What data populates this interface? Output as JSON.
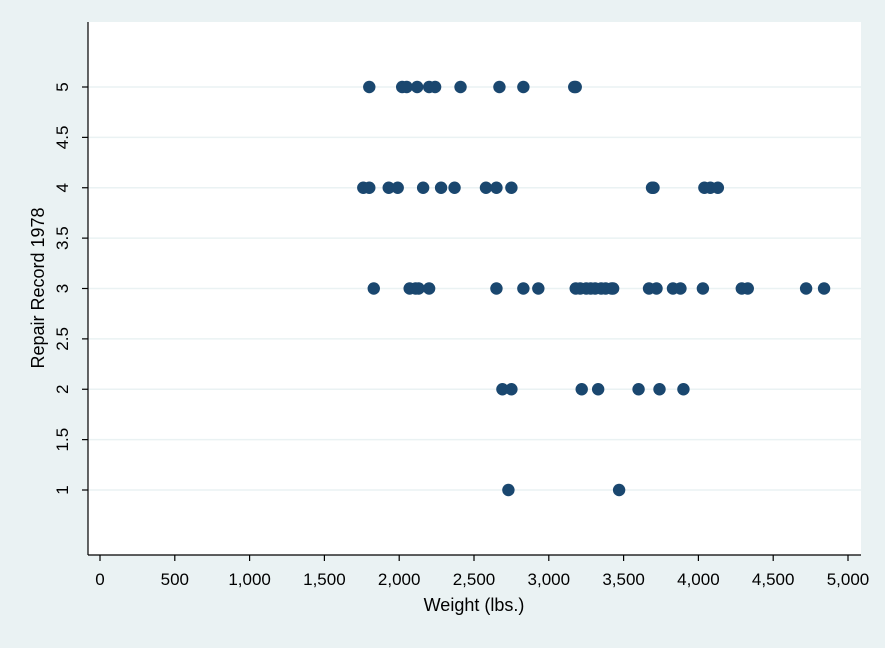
{
  "chart_data": {
    "type": "scatter",
    "title": "",
    "xlabel": "Weight (lbs.)",
    "ylabel": "Repair Record 1978",
    "xlim": [
      0,
      5000
    ],
    "ylim": [
      0.5,
      5.5
    ],
    "grid": true,
    "x_ticks": [
      0,
      500,
      1000,
      1500,
      2000,
      2500,
      3000,
      3500,
      4000,
      4500,
      5000
    ],
    "x_tick_labels": [
      "0",
      "500",
      "1,000",
      "1,500",
      "2,000",
      "2,500",
      "3,000",
      "3,500",
      "4,000",
      "4,500",
      "5,000"
    ],
    "y_ticks": [
      1,
      1.5,
      2,
      2.5,
      3,
      3.5,
      4,
      4.5,
      5
    ],
    "y_tick_labels": [
      "1",
      "1.5",
      "2",
      "2.5",
      "3",
      "3.5",
      "4",
      "4.5",
      "5"
    ],
    "colors": {
      "marker": "#1a476f",
      "outer_background": "#eaf2f3",
      "plot_background": "#ffffff",
      "gridline": "#eaf2f3",
      "axis": "#000000"
    },
    "series": [
      {
        "points": [
          {
            "x": 1800,
            "y": 5
          },
          {
            "x": 2020,
            "y": 5
          },
          {
            "x": 2050,
            "y": 5
          },
          {
            "x": 2120,
            "y": 5
          },
          {
            "x": 2200,
            "y": 5
          },
          {
            "x": 2240,
            "y": 5
          },
          {
            "x": 2410,
            "y": 5
          },
          {
            "x": 2670,
            "y": 5
          },
          {
            "x": 2830,
            "y": 5
          },
          {
            "x": 3170,
            "y": 5
          },
          {
            "x": 3180,
            "y": 5
          },
          {
            "x": 1760,
            "y": 4
          },
          {
            "x": 1800,
            "y": 4
          },
          {
            "x": 1930,
            "y": 4
          },
          {
            "x": 1990,
            "y": 4
          },
          {
            "x": 2160,
            "y": 4
          },
          {
            "x": 2280,
            "y": 4
          },
          {
            "x": 2370,
            "y": 4
          },
          {
            "x": 2580,
            "y": 4
          },
          {
            "x": 2650,
            "y": 4
          },
          {
            "x": 2750,
            "y": 4
          },
          {
            "x": 3690,
            "y": 4
          },
          {
            "x": 3700,
            "y": 4
          },
          {
            "x": 4040,
            "y": 4
          },
          {
            "x": 4080,
            "y": 4
          },
          {
            "x": 4130,
            "y": 4
          },
          {
            "x": 1830,
            "y": 3
          },
          {
            "x": 2070,
            "y": 3
          },
          {
            "x": 2110,
            "y": 3
          },
          {
            "x": 2130,
            "y": 3
          },
          {
            "x": 2200,
            "y": 3
          },
          {
            "x": 2650,
            "y": 3
          },
          {
            "x": 2830,
            "y": 3
          },
          {
            "x": 2930,
            "y": 3
          },
          {
            "x": 3180,
            "y": 3
          },
          {
            "x": 3210,
            "y": 3
          },
          {
            "x": 3250,
            "y": 3
          },
          {
            "x": 3280,
            "y": 3
          },
          {
            "x": 3310,
            "y": 3
          },
          {
            "x": 3350,
            "y": 3
          },
          {
            "x": 3380,
            "y": 3
          },
          {
            "x": 3420,
            "y": 3
          },
          {
            "x": 3430,
            "y": 3
          },
          {
            "x": 3670,
            "y": 3
          },
          {
            "x": 3720,
            "y": 3
          },
          {
            "x": 3830,
            "y": 3
          },
          {
            "x": 3880,
            "y": 3
          },
          {
            "x": 4030,
            "y": 3
          },
          {
            "x": 4290,
            "y": 3
          },
          {
            "x": 4330,
            "y": 3
          },
          {
            "x": 4720,
            "y": 3
          },
          {
            "x": 4840,
            "y": 3
          },
          {
            "x": 2690,
            "y": 2
          },
          {
            "x": 2750,
            "y": 2
          },
          {
            "x": 3220,
            "y": 2
          },
          {
            "x": 3330,
            "y": 2
          },
          {
            "x": 3600,
            "y": 2
          },
          {
            "x": 3740,
            "y": 2
          },
          {
            "x": 3900,
            "y": 2
          },
          {
            "x": 2730,
            "y": 1
          },
          {
            "x": 3470,
            "y": 1
          }
        ]
      }
    ]
  }
}
